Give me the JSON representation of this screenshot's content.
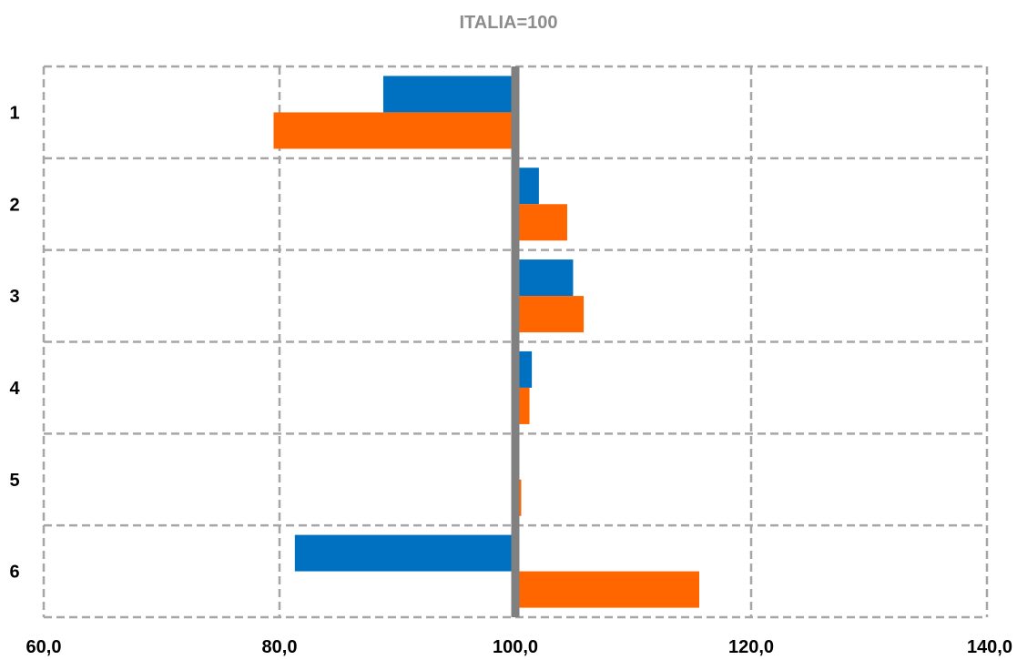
{
  "chart_data": {
    "type": "bar",
    "orientation": "horizontal",
    "title": "ITALIA=100",
    "xlabel": "",
    "ylabel": "",
    "categories": [
      "1",
      "2",
      "3",
      "4",
      "5",
      "6"
    ],
    "series": [
      {
        "color": "#0070C0",
        "values": [
          88.8,
          102.0,
          104.9,
          101.4,
          100.0,
          81.3
        ]
      },
      {
        "color": "#FF6600",
        "values": [
          79.5,
          104.4,
          105.8,
          101.2,
          100.5,
          115.6
        ]
      }
    ],
    "baseline": 100,
    "xlim": [
      60,
      140
    ],
    "xticks": [
      60,
      80,
      100,
      120,
      140
    ],
    "xtick_labels": [
      "60,0",
      "80,0",
      "100,0",
      "120,0",
      "140,0"
    ],
    "grid": true,
    "grid_style": "dashed",
    "legend": "none"
  },
  "colors": {
    "title": "#8c8c8c",
    "grid": "#a6a6a6",
    "baseline": "#808080"
  }
}
